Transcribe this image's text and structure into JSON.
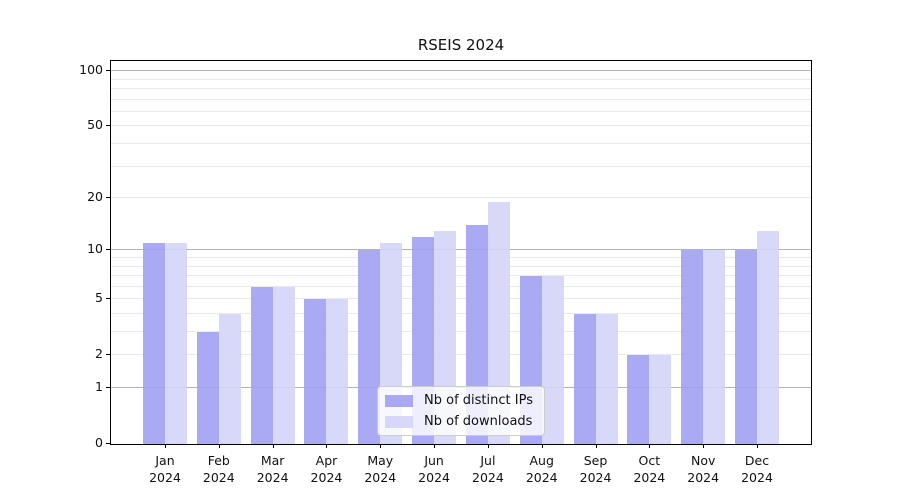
{
  "chart_data": {
    "type": "bar",
    "title": "RSEIS 2024",
    "categories": [
      "Jan",
      "Feb",
      "Mar",
      "Apr",
      "May",
      "Jun",
      "Jul",
      "Aug",
      "Sep",
      "Oct",
      "Nov",
      "Dec"
    ],
    "category_year": "2024",
    "series": [
      {
        "name": "Nb of distinct IPs",
        "color": "#9d9df3",
        "values": [
          11,
          3,
          6,
          5,
          10,
          12,
          14,
          7,
          4,
          2,
          10,
          10
        ]
      },
      {
        "name": "Nb of downloads",
        "color": "#d3d3f8",
        "values": [
          11,
          4,
          6,
          5,
          11,
          13,
          19,
          7,
          4,
          2,
          10,
          13
        ]
      }
    ],
    "y_axis": {
      "scale": "log10(1+v)",
      "ticks": [
        0,
        1,
        2,
        5,
        10,
        20,
        50,
        100
      ],
      "major_gridlines": [
        1,
        10,
        100
      ],
      "minor_gridlines": [
        2,
        3,
        4,
        5,
        6,
        7,
        8,
        9,
        20,
        30,
        40,
        50,
        60,
        70,
        80,
        90
      ],
      "range": [
        0,
        111
      ]
    },
    "legend": {
      "position": "lower center"
    },
    "colors": {
      "bar_alpha": 0.88,
      "grid_major": "#b3b3b3",
      "grid_minor": "#e9e9e9",
      "axis": "#000000",
      "text": "#111111"
    },
    "grid": true
  }
}
